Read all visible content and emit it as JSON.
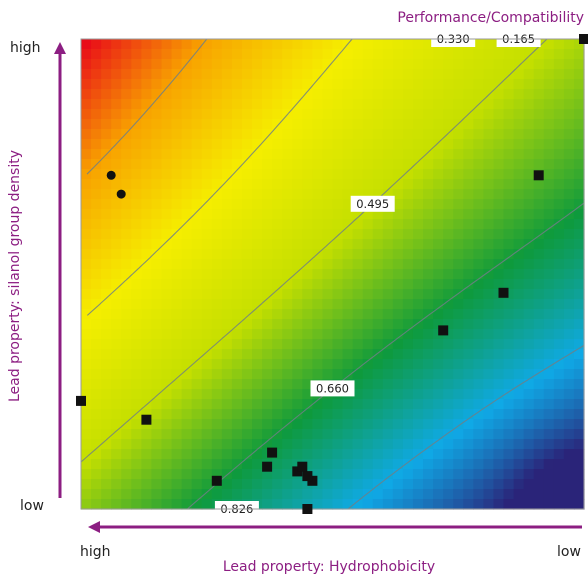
{
  "chart_data": {
    "type": "heatmap",
    "title": "Performance/Compatibility",
    "xlabel": "Lead property: Hydrophobicity",
    "ylabel": "Lead property: silanol group density",
    "x_tick_labels": {
      "left": "high",
      "right": "low"
    },
    "y_tick_labels": {
      "top": "high",
      "bottom": "low"
    },
    "value_range": [
      0.0,
      1.0
    ],
    "colormap": [
      "#e8001a",
      "#f8a300",
      "#f5ee00",
      "#c4df00",
      "#0e9a3c",
      "#0fa9e6",
      "#2a2479"
    ],
    "contour_levels": [
      "0.165",
      "0.330",
      "0.495",
      "0.660",
      "0.826"
    ],
    "square_points": [
      [
        0.0,
        0.23
      ],
      [
        0.13,
        0.19
      ],
      [
        0.38,
        0.12
      ],
      [
        0.43,
        0.08
      ],
      [
        0.46,
        0.06
      ],
      [
        0.44,
        0.09
      ],
      [
        0.45,
        0.07
      ],
      [
        0.37,
        0.09
      ],
      [
        0.27,
        0.06
      ],
      [
        0.45,
        0.0
      ],
      [
        0.72,
        0.38
      ],
      [
        0.84,
        0.46
      ],
      [
        0.91,
        0.71
      ],
      [
        1.0,
        1.0
      ]
    ],
    "circle_points": [
      [
        0.06,
        0.71
      ],
      [
        0.08,
        0.67
      ]
    ]
  }
}
